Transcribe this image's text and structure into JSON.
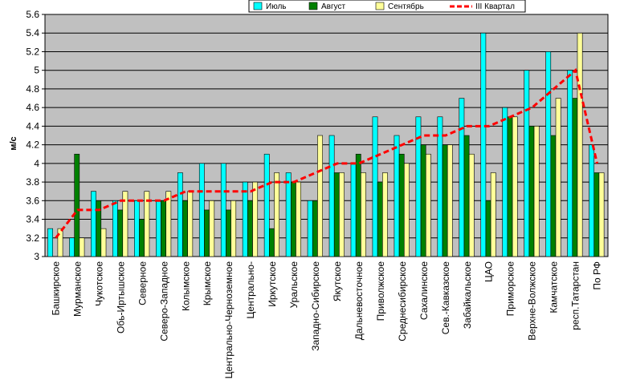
{
  "chart_data": {
    "type": "bar",
    "ylabel": "м/с",
    "ylim": [
      3,
      5.6
    ],
    "yticks": [
      "3",
      "3.2",
      "3.4",
      "3.6",
      "3.8",
      "4",
      "4.2",
      "4.4",
      "4.6",
      "4.8",
      "5",
      "5.2",
      "5.4",
      "5.6"
    ],
    "legend_position": "top-right",
    "categories": [
      "Башкирское",
      "Мурманское",
      "Чукотское",
      "Обь-Иртышское",
      "Северное",
      "Северо-Западное",
      "Колымское",
      "Крымское",
      "Центрально-Черноземное",
      "Центрально-",
      "Иркутское",
      "Уральское",
      "Западно-Сибирское",
      "Якутское",
      "Дальневосточное",
      "Приволжское",
      "Среднесибирское",
      "Сахалинское",
      "Сев.-Кавказское",
      "Забайкальское",
      "ЦАО",
      "Приморское",
      "Верхне-Волжское",
      "Камчатское",
      "респ.Татарстан",
      "По РФ"
    ],
    "series": [
      {
        "name": "Июль",
        "color": "#00ffff",
        "values": [
          3.3,
          3.2,
          3.7,
          3.6,
          3.6,
          3.6,
          3.9,
          4.0,
          4.0,
          3.8,
          4.1,
          3.9,
          3.6,
          4.3,
          4.0,
          4.5,
          4.3,
          4.5,
          4.5,
          4.7,
          5.4,
          4.6,
          5.0,
          5.2,
          5.0,
          4.2
        ]
      },
      {
        "name": "Август",
        "color": "#008000",
        "values": [
          3.0,
          4.1,
          3.6,
          3.5,
          3.4,
          3.6,
          3.6,
          3.5,
          3.5,
          3.6,
          3.3,
          3.8,
          3.6,
          3.9,
          4.1,
          3.8,
          4.1,
          4.2,
          4.2,
          4.3,
          3.6,
          4.5,
          4.4,
          4.3,
          4.7,
          3.9
        ]
      },
      {
        "name": "Сентябрь",
        "color": "#ffff99",
        "values": [
          3.3,
          3.2,
          3.3,
          3.7,
          3.7,
          3.7,
          3.7,
          3.6,
          3.6,
          3.8,
          3.9,
          3.8,
          4.3,
          3.9,
          3.9,
          3.9,
          4.0,
          4.1,
          4.2,
          4.1,
          3.9,
          4.5,
          4.4,
          4.7,
          5.4,
          3.9
        ]
      },
      {
        "name": "III Квартал",
        "color": "#ff0000",
        "type": "line",
        "values": [
          3.2,
          3.5,
          3.5,
          3.6,
          3.6,
          3.6,
          3.7,
          3.7,
          3.7,
          3.7,
          3.8,
          3.8,
          3.9,
          4.0,
          4.0,
          4.1,
          4.2,
          4.3,
          4.3,
          4.4,
          4.4,
          4.5,
          4.6,
          4.8,
          5.0,
          4.0
        ]
      }
    ]
  }
}
